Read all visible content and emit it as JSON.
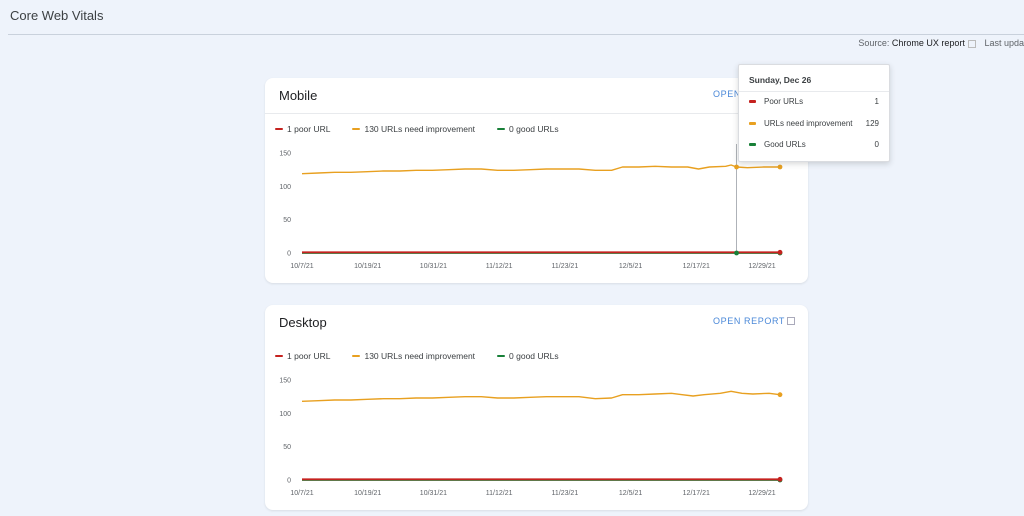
{
  "page": {
    "title": "Core Web Vitals"
  },
  "meta": {
    "source_label": "Source:",
    "source_value": "Chrome UX report",
    "updated_label": "Last upda"
  },
  "colors": {
    "poor": "#c5221f",
    "needs": "#e8a020",
    "good": "#188038"
  },
  "cards": [
    {
      "title": "Mobile",
      "open_report": "OPEN REPORT",
      "legend": {
        "poor": "1 poor URL",
        "needs": "130 URLs need improvement",
        "good": "0 good URLs"
      }
    },
    {
      "title": "Desktop",
      "open_report": "OPEN REPORT",
      "legend": {
        "poor": "1 poor URL",
        "needs": "130 URLs need improvement",
        "good": "0 good URLs"
      }
    }
  ],
  "tooltip": {
    "date": "Sunday, Dec 26",
    "rows": [
      {
        "label": "Poor URLs",
        "value": "1"
      },
      {
        "label": "URLs need improvement",
        "value": "129"
      },
      {
        "label": "Good URLs",
        "value": "0"
      }
    ]
  },
  "chart_data": [
    {
      "type": "line",
      "title": "Mobile",
      "x_ticks": [
        "10/7/21",
        "10/19/21",
        "10/31/21",
        "11/12/21",
        "11/23/21",
        "12/5/21",
        "12/17/21",
        "12/29/21"
      ],
      "y_ticks": [
        "0",
        "50",
        "100",
        "150"
      ],
      "ylim": [
        0,
        150
      ],
      "x_range_days": [
        0,
        88
      ],
      "grid": false,
      "legend_position": "top-left",
      "hover_day": 80,
      "series": [
        {
          "name": "1 poor URL",
          "key": "poor",
          "points": [
            [
              0,
              1
            ],
            [
              88,
              1
            ]
          ]
        },
        {
          "name": "130 URLs need improvement",
          "key": "needs",
          "points": [
            [
              0,
              119
            ],
            [
              3,
              120
            ],
            [
              6,
              121
            ],
            [
              9,
              121
            ],
            [
              12,
              122
            ],
            [
              15,
              123
            ],
            [
              18,
              123
            ],
            [
              21,
              124
            ],
            [
              24,
              124
            ],
            [
              27,
              125
            ],
            [
              30,
              126
            ],
            [
              33,
              126
            ],
            [
              36,
              124
            ],
            [
              39,
              124
            ],
            [
              42,
              125
            ],
            [
              45,
              126
            ],
            [
              48,
              126
            ],
            [
              51,
              126
            ],
            [
              54,
              124
            ],
            [
              57,
              124
            ],
            [
              59,
              129
            ],
            [
              62,
              129
            ],
            [
              65,
              130
            ],
            [
              68,
              129
            ],
            [
              71,
              129
            ],
            [
              73,
              126
            ],
            [
              75,
              129
            ],
            [
              78,
              130
            ],
            [
              79,
              132
            ],
            [
              80,
              129
            ],
            [
              82,
              128
            ],
            [
              85,
              129
            ],
            [
              88,
              129
            ]
          ]
        },
        {
          "name": "0 good URLs",
          "key": "good",
          "points": [
            [
              0,
              0
            ],
            [
              88,
              0
            ]
          ]
        }
      ]
    },
    {
      "type": "line",
      "title": "Desktop",
      "x_ticks": [
        "10/7/21",
        "10/19/21",
        "10/31/21",
        "11/12/21",
        "11/23/21",
        "12/5/21",
        "12/17/21",
        "12/29/21"
      ],
      "y_ticks": [
        "0",
        "50",
        "100",
        "150"
      ],
      "ylim": [
        0,
        150
      ],
      "x_range_days": [
        0,
        88
      ],
      "grid": false,
      "legend_position": "top-left",
      "series": [
        {
          "name": "1 poor URL",
          "key": "poor",
          "points": [
            [
              0,
              1
            ],
            [
              88,
              1
            ]
          ]
        },
        {
          "name": "130 URLs need improvement",
          "key": "needs",
          "points": [
            [
              0,
              118
            ],
            [
              3,
              119
            ],
            [
              6,
              120
            ],
            [
              9,
              120
            ],
            [
              12,
              121
            ],
            [
              15,
              122
            ],
            [
              18,
              122
            ],
            [
              21,
              123
            ],
            [
              24,
              123
            ],
            [
              27,
              124
            ],
            [
              30,
              125
            ],
            [
              33,
              125
            ],
            [
              36,
              123
            ],
            [
              39,
              123
            ],
            [
              42,
              124
            ],
            [
              45,
              125
            ],
            [
              48,
              125
            ],
            [
              51,
              125
            ],
            [
              54,
              122
            ],
            [
              57,
              123
            ],
            [
              59,
              128
            ],
            [
              62,
              128
            ],
            [
              65,
              129
            ],
            [
              68,
              130
            ],
            [
              70,
              128
            ],
            [
              72,
              126
            ],
            [
              74,
              128
            ],
            [
              77,
              130
            ],
            [
              79,
              133
            ],
            [
              81,
              130
            ],
            [
              83,
              129
            ],
            [
              86,
              130
            ],
            [
              88,
              128
            ]
          ]
        },
        {
          "name": "0 good URLs",
          "key": "good",
          "points": [
            [
              0,
              0
            ],
            [
              88,
              0
            ]
          ]
        }
      ]
    }
  ]
}
